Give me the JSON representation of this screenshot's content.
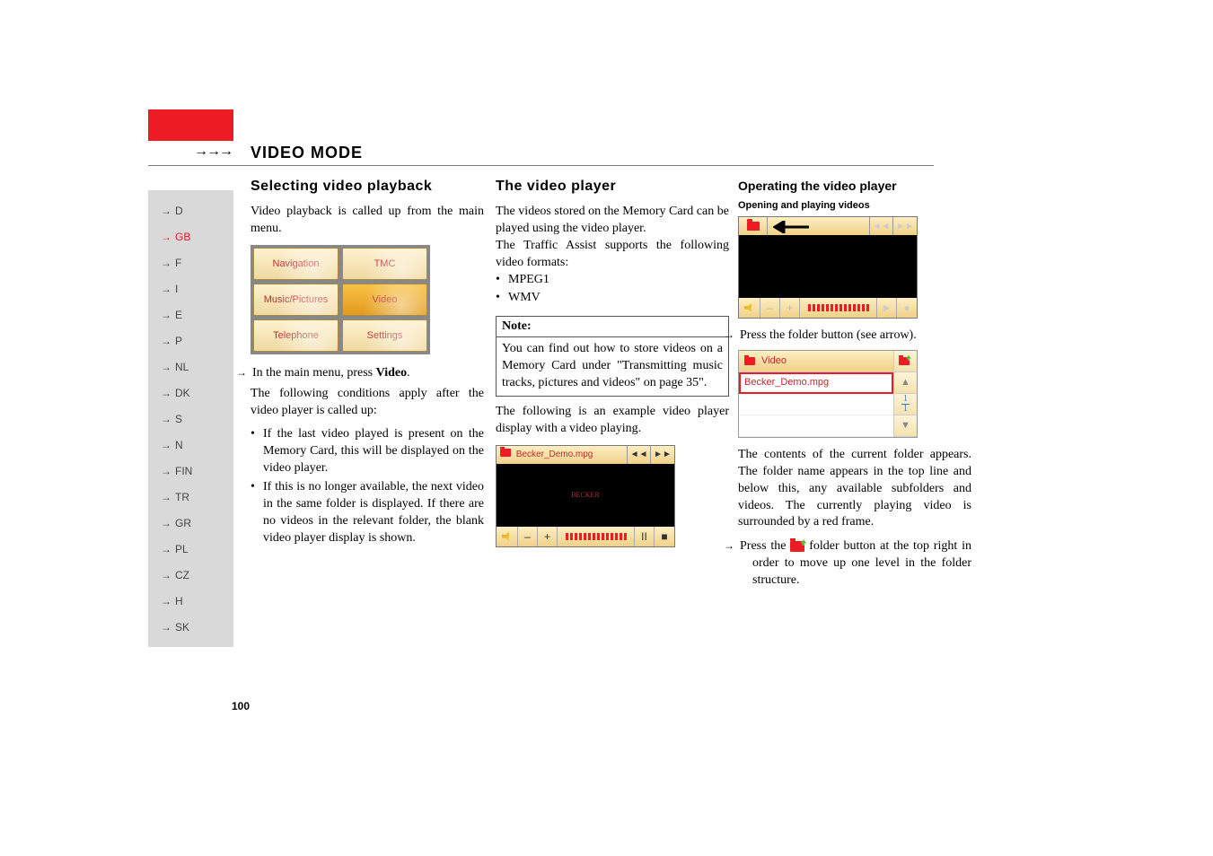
{
  "header": {
    "arrows": "→→→",
    "title": "VIDEO MODE"
  },
  "sidebar": {
    "items": [
      {
        "label": "D",
        "active": false
      },
      {
        "label": "GB",
        "active": true
      },
      {
        "label": "F",
        "active": false
      },
      {
        "label": "I",
        "active": false
      },
      {
        "label": "E",
        "active": false
      },
      {
        "label": "P",
        "active": false
      },
      {
        "label": "NL",
        "active": false
      },
      {
        "label": "DK",
        "active": false
      },
      {
        "label": "S",
        "active": false
      },
      {
        "label": "N",
        "active": false
      },
      {
        "label": "FIN",
        "active": false
      },
      {
        "label": "TR",
        "active": false
      },
      {
        "label": "GR",
        "active": false
      },
      {
        "label": "PL",
        "active": false
      },
      {
        "label": "CZ",
        "active": false
      },
      {
        "label": "H",
        "active": false
      },
      {
        "label": "SK",
        "active": false
      }
    ],
    "arrow_glyph": "→"
  },
  "col1": {
    "title": "Selecting video playback",
    "p1": "Video playback is called up from the main menu.",
    "mainmenu": {
      "cells": [
        {
          "label": "Navigation",
          "selected": false
        },
        {
          "label": "TMC",
          "selected": false
        },
        {
          "label": "Music/Pictures",
          "selected": false
        },
        {
          "label": "Video",
          "selected": true
        },
        {
          "label": "Telephone",
          "selected": false
        },
        {
          "label": "Settings",
          "selected": false
        }
      ]
    },
    "step1_prefix": "→",
    "step1_a": "In the main menu, press ",
    "step1_bold": "Video",
    "step1_b": ".",
    "p2": "The following conditions apply after the video player is called up:",
    "bullets": [
      "If the last video played is present on the Memory Card, this will be displayed on the video player.",
      "If this is no longer available, the next video in the same folder is displayed. If there are no videos in the relevant fold­er, the blank video player display is shown."
    ]
  },
  "col2": {
    "title": "The video player",
    "p1": "The videos stored on the Memory Card can be played using the video player.",
    "p2": "The Traffic Assist supports the following video formats:",
    "formats": [
      "MPEG1",
      "WMV"
    ],
    "note_title": "Note:",
    "note_body": "You can find out how to store videos on a Memory Card under \"Transmitting music tracks, pictures and videos\" on page 35\".",
    "p3": "The following is an example video player display with a video playing.",
    "player": {
      "title": "Becker_Demo.mpg",
      "rew": "◄◄",
      "fwd": "►►",
      "minus": "–",
      "plus": "+",
      "play": "II",
      "stop": "■",
      "screen_label": "BECKER"
    }
  },
  "col3": {
    "title": "Operating the video player",
    "subtitle": "Opening and playing videos",
    "player_blank": {
      "rew": "◄◄",
      "fwd": "►►",
      "minus": "–",
      "plus": "+",
      "play": "►",
      "stop": "●"
    },
    "step1_prefix": "→",
    "step1": "Press the folder button (see arrow).",
    "folder_list": {
      "header": "Video",
      "rows": [
        "Becker_Demo.mpg",
        "",
        ""
      ],
      "page_num": "1",
      "page_den": "1",
      "up_glyph": "▲",
      "down_glyph": "▼"
    },
    "p1": "The contents of the current folder ap­pears. The folder name appears in the top line and below this, any available subfold­ers and videos. The currently playing vid­eo is surrounded by a red frame.",
    "step2_prefix": "→",
    "step2_a": "Press the ",
    "step2_b": " folder button at the top right in order to move up one level in the folder structure."
  },
  "page_number": "100",
  "colors": {
    "accent": "#ed1c24",
    "sidebar_bg": "#d9d9d9",
    "cell_grad_top": "#fdf1cf",
    "cell_grad_bottom": "#f0d9a1",
    "cell_sel_top": "#f7c246",
    "cell_sel_bottom": "#e39a1f"
  }
}
